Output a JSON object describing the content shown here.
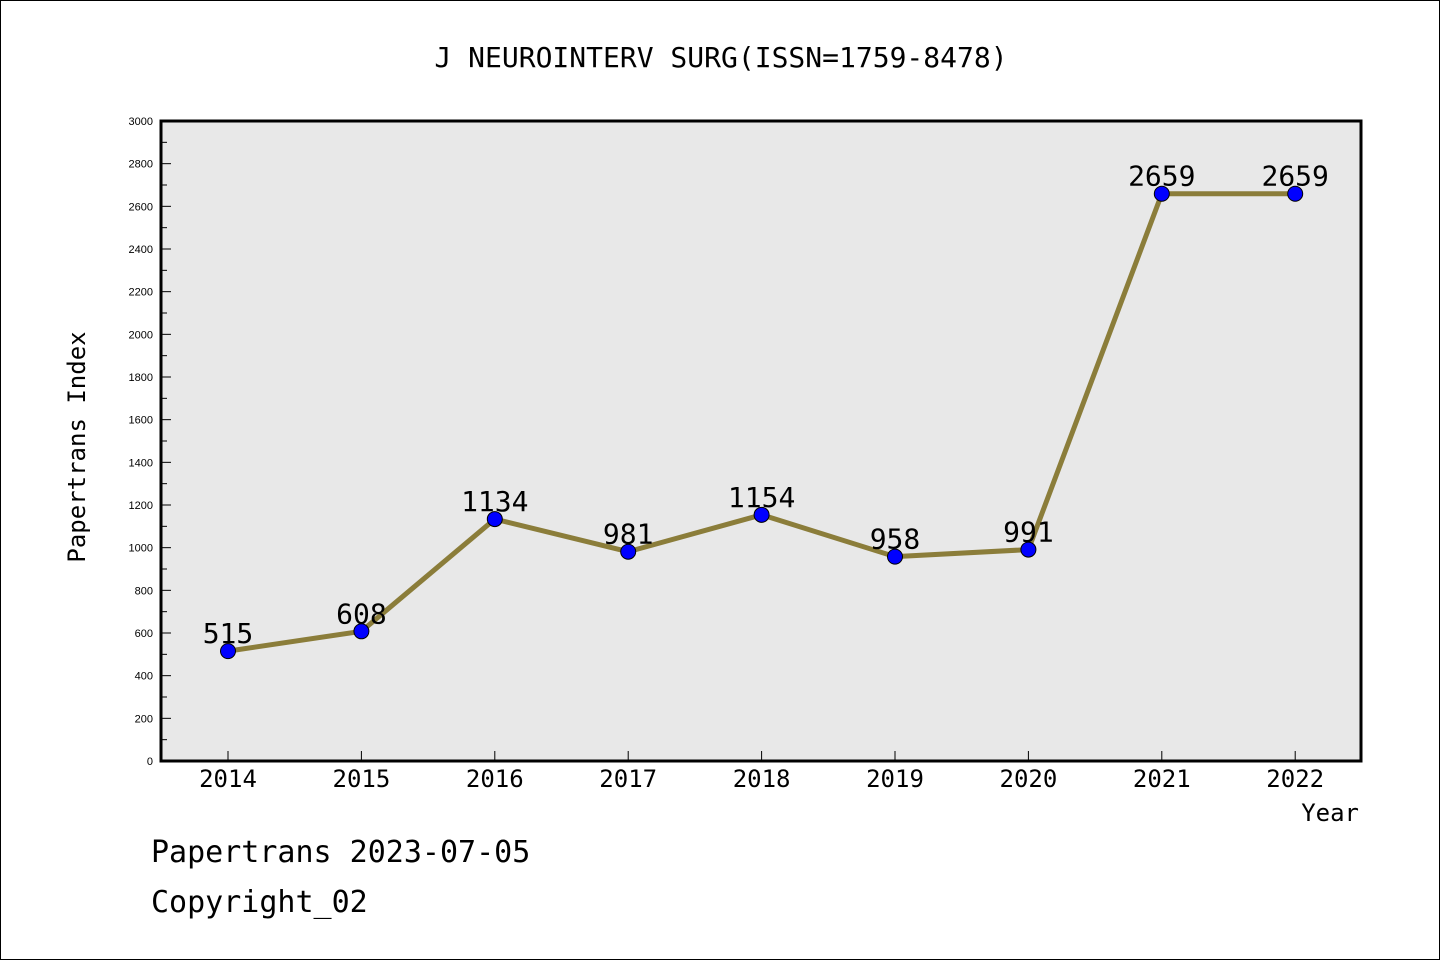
{
  "chart_data": {
    "type": "line",
    "title": "J NEUROINTERV SURG(ISSN=1759-8478)",
    "xlabel": "Year",
    "ylabel": "Papertrans Index",
    "categories": [
      "2014",
      "2015",
      "2016",
      "2017",
      "2018",
      "2019",
      "2020",
      "2021",
      "2022"
    ],
    "series": [
      {
        "values": [
          515,
          608,
          1134,
          981,
          1154,
          958,
          991,
          2659,
          2659
        ]
      }
    ],
    "ylim": [
      0,
      3000
    ],
    "yticks": [
      0,
      200,
      400,
      600,
      800,
      1000,
      1200,
      1400,
      1600,
      1800,
      2000,
      2200,
      2400,
      2600,
      2800,
      3000
    ],
    "grid": false,
    "colors": {
      "line": "#8b7d3a",
      "marker": "#0000ff",
      "plot_background": "#e8e8e8"
    }
  },
  "footer": {
    "line1": "Papertrans 2023-07-05",
    "line2": "Copyright_02"
  }
}
